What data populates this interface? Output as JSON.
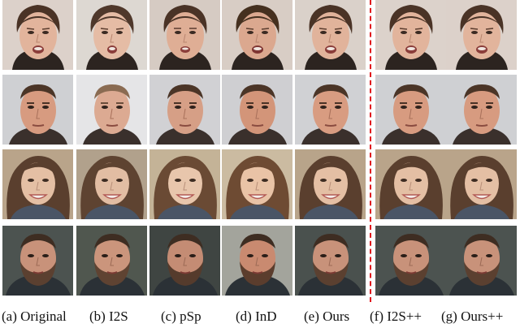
{
  "captions": {
    "a": "(a) Original",
    "b": "(b) I2S",
    "c": "(c) pSp",
    "d": "(d) InD",
    "e": "(e) Ours",
    "f": "(f) I2S++",
    "g": "(g) Ours++"
  },
  "rows": [
    {
      "subject": "woman-brown-hair-expressive",
      "bg": "#d9cfc8",
      "skin": "#e2b49c",
      "hair": "#4a3326"
    },
    {
      "subject": "man-short-hair",
      "bg": "#d3d3d6",
      "skin": "#d79b80",
      "hair": "#4b3527"
    },
    {
      "subject": "woman-long-hair-smiling",
      "bg": "#b7a389",
      "skin": "#e4bfa4",
      "hair": "#5a3f2e"
    },
    {
      "subject": "man-bearded",
      "bg": "#4c5350",
      "skin": "#c8927a",
      "hair": "#3e2d22"
    }
  ],
  "colors": {
    "divider": "#e0141c"
  }
}
